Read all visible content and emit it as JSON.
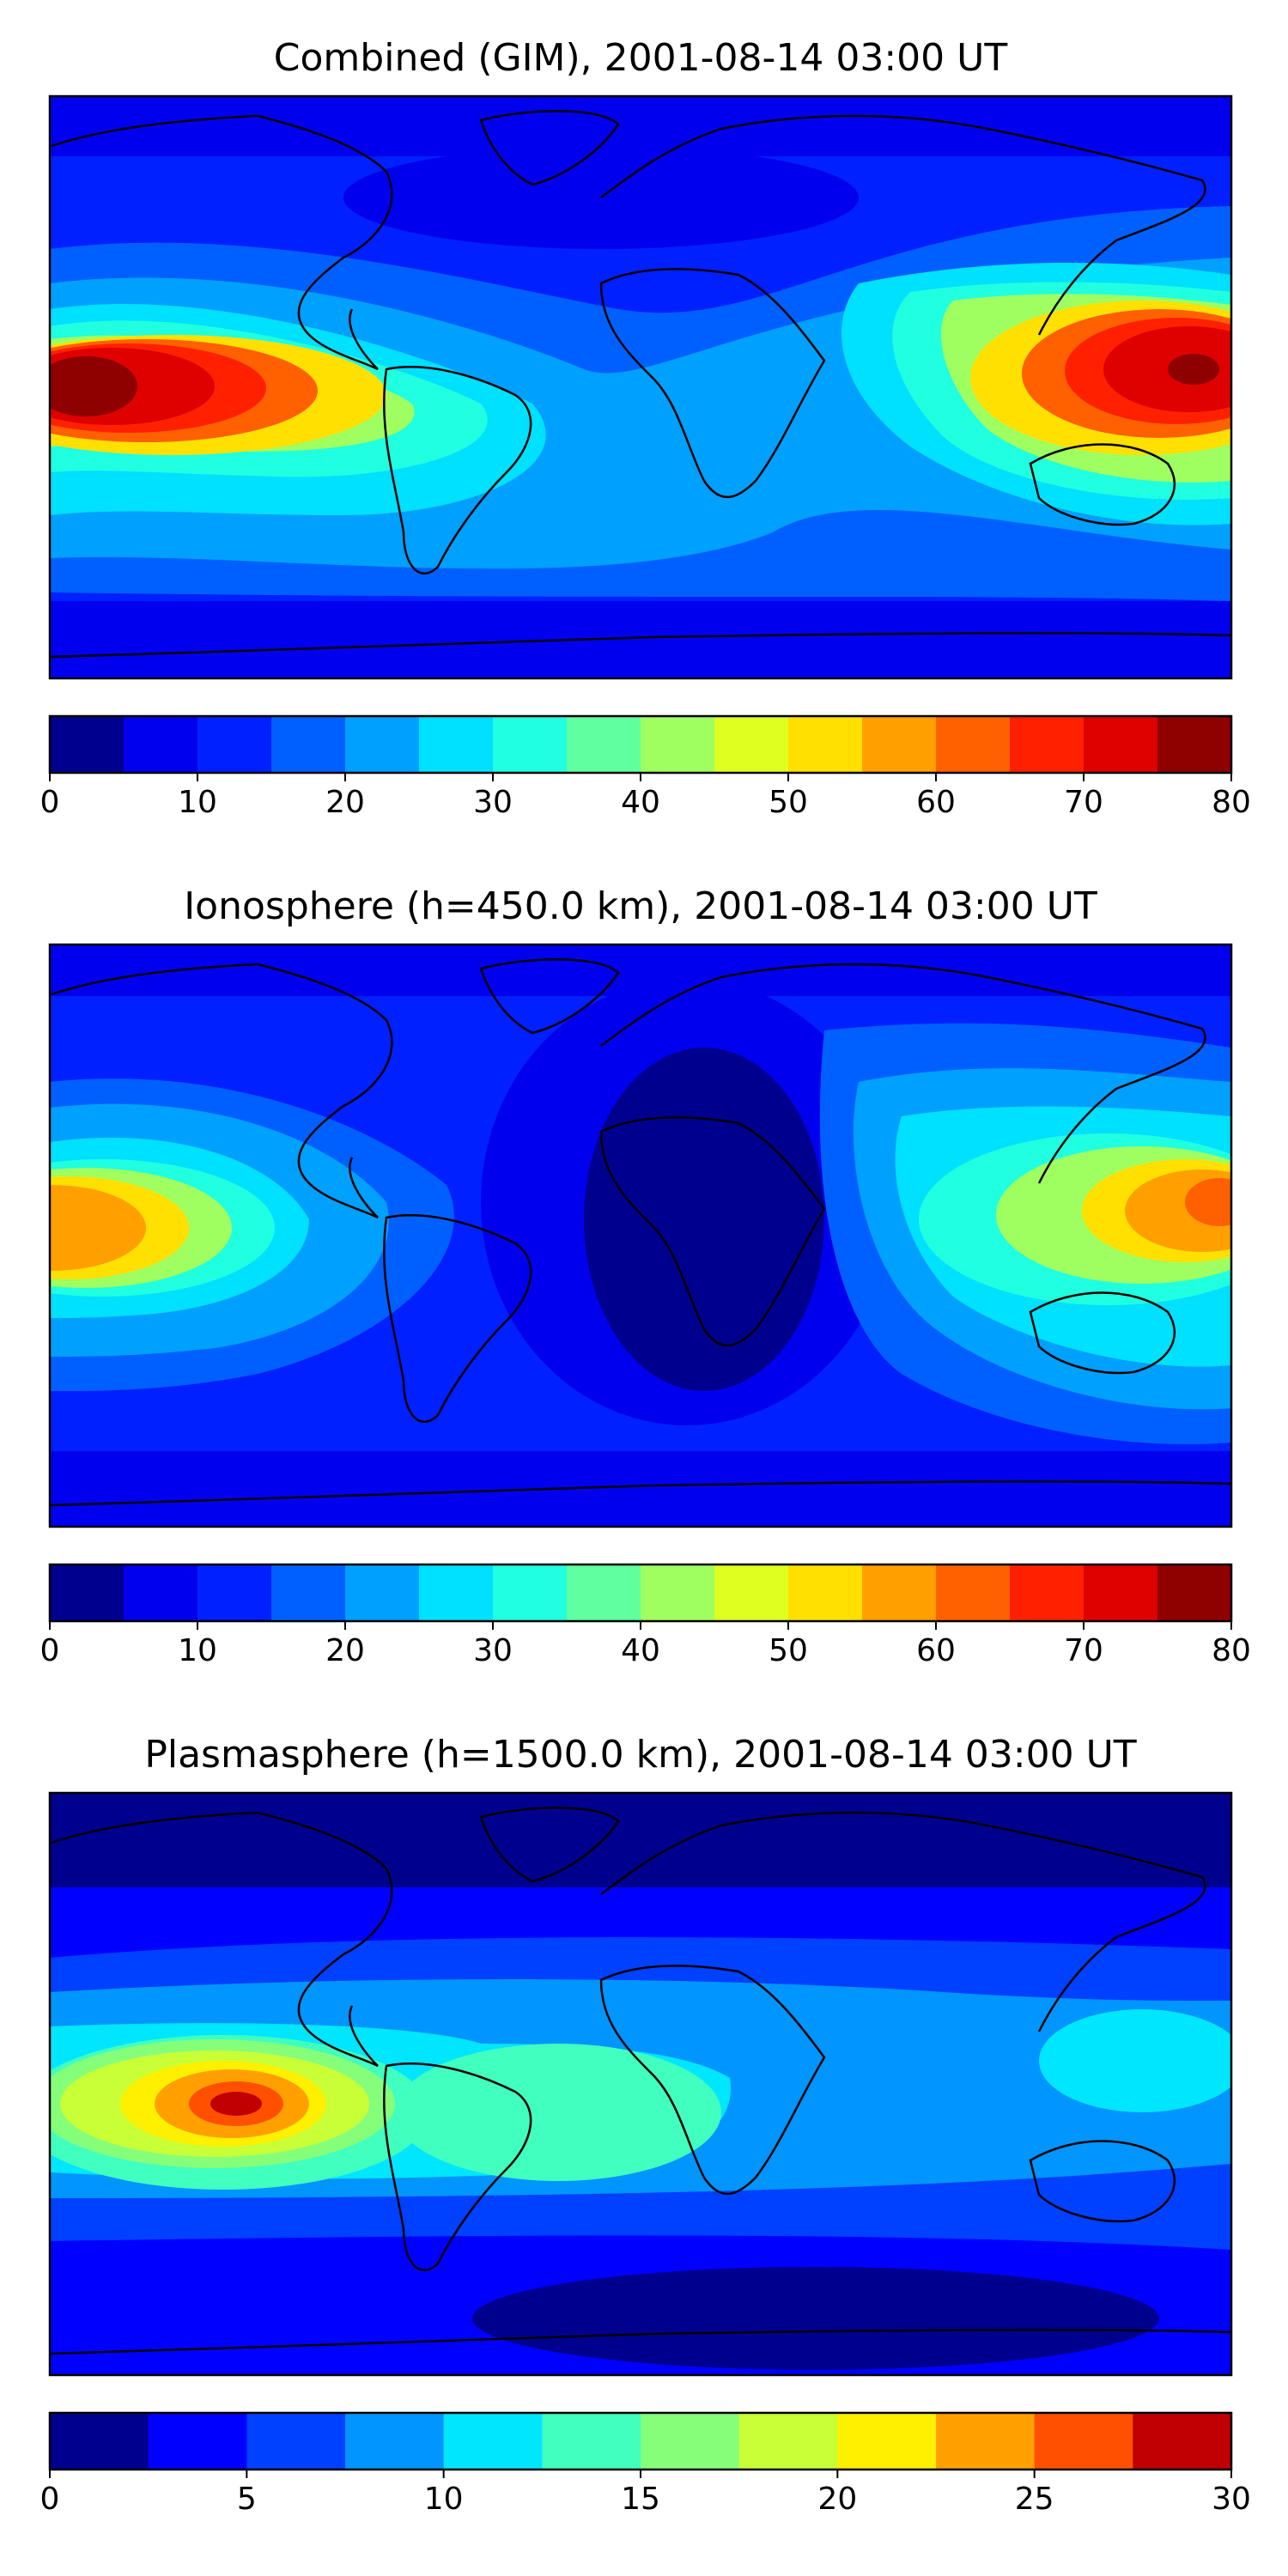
{
  "panels": [
    {
      "title": "Combined (GIM), 2001-08-14 03:00 UT",
      "colorbar": {
        "min": 0,
        "max": 80,
        "step": 5,
        "ticks": [
          "0",
          "10",
          "20",
          "30",
          "40",
          "50",
          "60",
          "70",
          "80"
        ]
      }
    },
    {
      "title": "Ionosphere  (h=450.0 km), 2001-08-14 03:00 UT",
      "colorbar": {
        "min": 0,
        "max": 80,
        "step": 5,
        "ticks": [
          "0",
          "10",
          "20",
          "30",
          "40",
          "50",
          "60",
          "70",
          "80"
        ]
      }
    },
    {
      "title": "Plasmasphere (h=1500.0 km), 2001-08-14 03:00 UT",
      "colorbar": {
        "min": 0,
        "max": 30,
        "step": 2.5,
        "ticks": [
          "0",
          "5",
          "10",
          "15",
          "20",
          "25",
          "30"
        ]
      }
    }
  ],
  "colors": {
    "jet16": [
      "#00008f",
      "#0000ef",
      "#0020ff",
      "#0060ff",
      "#00a0ff",
      "#00e0ff",
      "#20ffdf",
      "#60ff9f",
      "#9fff60",
      "#dfff20",
      "#ffe000",
      "#ffa000",
      "#ff6000",
      "#ff2000",
      "#df0000",
      "#8f0000"
    ],
    "jet12": [
      "#00008f",
      "#0000ff",
      "#0040ff",
      "#0095ff",
      "#00e6ff",
      "#40ffbf",
      "#85ff7a",
      "#c8ff37",
      "#fff000",
      "#ffa000",
      "#ff5000",
      "#c00000"
    ]
  }
}
